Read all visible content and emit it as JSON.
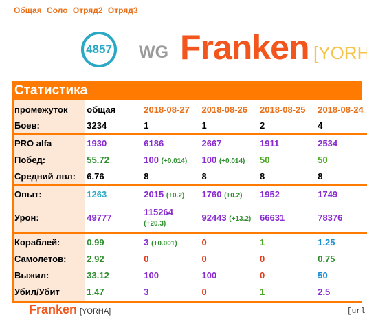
{
  "tabs": [
    "Общая",
    "Соло",
    "Отряд2",
    "Отряд3"
  ],
  "player": {
    "rating": "4857",
    "clan": "WG",
    "name": "Franken",
    "tag_open": "[YORH"
  },
  "section_title": "Статистика",
  "columns": [
    "промежуток",
    "общая",
    "2018-08-27",
    "2018-08-26",
    "2018-08-25",
    "2018-08-24"
  ],
  "rows": [
    {
      "label": "Боев:",
      "cells": [
        [
          "3234",
          "ov",
          ""
        ],
        [
          "1",
          "ov",
          ""
        ],
        [
          "1",
          "ov",
          ""
        ],
        [
          "2",
          "ov",
          ""
        ],
        [
          "4",
          "ov",
          ""
        ]
      ]
    },
    {
      "label": "PRO alfa",
      "sep": true,
      "cells": [
        [
          "1930",
          "pu",
          ""
        ],
        [
          "6186",
          "pu",
          ""
        ],
        [
          "2667",
          "pu",
          ""
        ],
        [
          "1911",
          "pu",
          ""
        ],
        [
          "2534",
          "pu",
          ""
        ]
      ]
    },
    {
      "label": "Побед:",
      "cells": [
        [
          "55.72",
          "dg",
          ""
        ],
        [
          "100",
          "pu",
          "(+0.014)"
        ],
        [
          "100",
          "pu",
          "(+0.014)"
        ],
        [
          "50",
          "gr",
          ""
        ],
        [
          "50",
          "gr",
          ""
        ]
      ]
    },
    {
      "label": "Средний лвл:",
      "cells": [
        [
          "6.76",
          "ov",
          ""
        ],
        [
          "8",
          "ov",
          ""
        ],
        [
          "8",
          "ov",
          ""
        ],
        [
          "8",
          "ov",
          ""
        ],
        [
          "8",
          "ov",
          ""
        ]
      ]
    },
    {
      "label": "Опыт:",
      "sep": true,
      "cells": [
        [
          "1263",
          "cy",
          ""
        ],
        [
          "2015",
          "pu",
          "(+0.2)"
        ],
        [
          "1760",
          "pu",
          "(+0.2)"
        ],
        [
          "1952",
          "pu",
          ""
        ],
        [
          "1749",
          "pu",
          ""
        ]
      ]
    },
    {
      "label": "Урон:",
      "tall": true,
      "cells": [
        [
          "49777",
          "pu",
          ""
        ],
        [
          "115264",
          "pu",
          "(+20.3)"
        ],
        [
          "92443",
          "pu",
          "(+13.2)"
        ],
        [
          "66631",
          "pu",
          ""
        ],
        [
          "78376",
          "pu",
          ""
        ]
      ]
    },
    {
      "label": "Кораблей:",
      "sep": true,
      "cells": [
        [
          "0.99",
          "dg",
          ""
        ],
        [
          "3",
          "pu",
          "(+0.001)"
        ],
        [
          "0",
          "rd",
          ""
        ],
        [
          "1",
          "gr",
          ""
        ],
        [
          "1.25",
          "bl",
          ""
        ]
      ]
    },
    {
      "label": "Самолетов:",
      "cells": [
        [
          "2.92",
          "dg",
          ""
        ],
        [
          "0",
          "rd",
          ""
        ],
        [
          "0",
          "rd",
          ""
        ],
        [
          "0",
          "rd",
          ""
        ],
        [
          "0.75",
          "dg",
          ""
        ]
      ]
    },
    {
      "label": "Выжил:",
      "cells": [
        [
          "33.12",
          "dg",
          ""
        ],
        [
          "100",
          "pu",
          ""
        ],
        [
          "100",
          "pu",
          ""
        ],
        [
          "0",
          "rd",
          ""
        ],
        [
          "50",
          "bl",
          ""
        ]
      ]
    },
    {
      "label": "Убил/Убит",
      "cells": [
        [
          "1.47",
          "dg",
          ""
        ],
        [
          "3",
          "pu",
          ""
        ],
        [
          "0",
          "rd",
          ""
        ],
        [
          "1",
          "gr",
          ""
        ],
        [
          "2.5",
          "pu",
          ""
        ]
      ]
    }
  ],
  "footer": {
    "name": "Franken",
    "tag": "[YORHA]",
    "url_label": "[url"
  },
  "colors": {
    "accent": "#ff7a00",
    "name": "#f2561d",
    "rating": "#2aa8c4",
    "purple": "#8a2bd0",
    "green": "#4aa81e",
    "red": "#e03a1a",
    "blue": "#1a8fd0"
  }
}
